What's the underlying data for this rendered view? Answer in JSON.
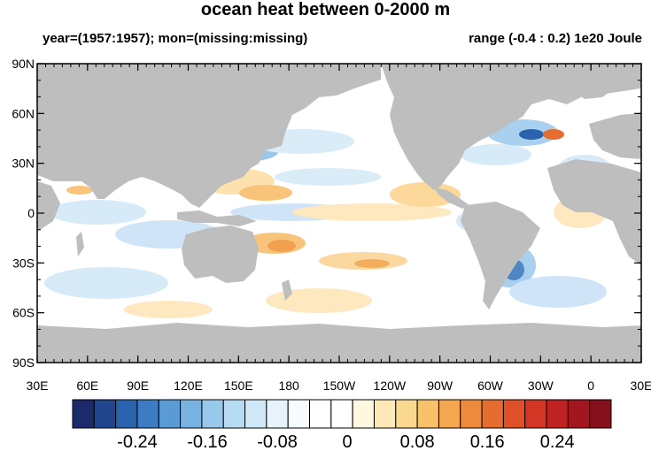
{
  "title": "ocean heat between 0-2000 m",
  "left_subtitle": "year=(1957:1957); mon=(missing:missing)",
  "right_subtitle": "range (-0.4 : 0.2) 1e20 Joule",
  "lat_labels": [
    "90N",
    "60N",
    "30N",
    "0",
    "30S",
    "60S",
    "90S"
  ],
  "lon_labels": [
    "30E",
    "60E",
    "90E",
    "120E",
    "150E",
    "180",
    "150W",
    "120W",
    "90W",
    "60W",
    "30W",
    "0",
    "30E"
  ],
  "colorbar": {
    "colors": [
      "#1b2a6b",
      "#21468f",
      "#2b62ad",
      "#3b7cc4",
      "#5a9bd5",
      "#78b3e2",
      "#98c9ec",
      "#b6dcf3",
      "#d0e9f8",
      "#e6f3fb",
      "#f6fbff",
      "#ffffff",
      "#ffffff",
      "#fff7df",
      "#fde8b8",
      "#fad890",
      "#f7c26a",
      "#f3a84f",
      "#ee8a3b",
      "#e76c2f",
      "#df4f28",
      "#d33625",
      "#c02223",
      "#a3161f",
      "#86111c"
    ],
    "labels": [
      "-0.24",
      "-0.16",
      "-0.08",
      "0",
      "0.08",
      "0.16",
      "0.24"
    ]
  },
  "colors": {
    "land": "#bebebe",
    "ocean": "#ffffff"
  }
}
